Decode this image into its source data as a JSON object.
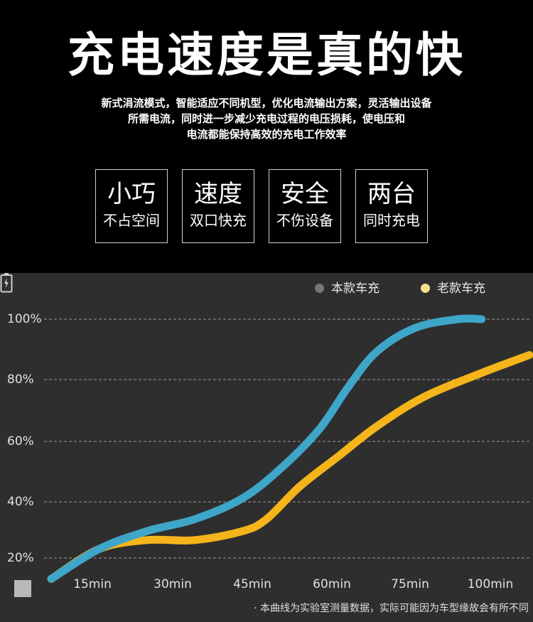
{
  "header": {
    "title": "充电速度是真的快",
    "description_lines": [
      "新式涓流模式，智能适应不同机型，优化电流输出方案，灵活输出设备",
      "所需电流，同时进一步减少充电过程的电压损耗，使电压和",
      "电流都能保持高效的充电工作效率"
    ]
  },
  "features": [
    {
      "title": "小巧",
      "subtitle": "不占空间"
    },
    {
      "title": "速度",
      "subtitle": "双口快充"
    },
    {
      "title": "安全",
      "subtitle": "不伤设备"
    },
    {
      "title": "两台",
      "subtitle": "同时充电"
    }
  ],
  "chart_data": {
    "type": "line",
    "title": "",
    "xlabel": "",
    "ylabel": "",
    "x_ticks": [
      "15min",
      "30min",
      "45min",
      "60min",
      "75min",
      "100min"
    ],
    "y_ticks": [
      "100%",
      "80%",
      "60%",
      "40%",
      "20%"
    ],
    "ylim": [
      10,
      100
    ],
    "xlim": [
      0,
      100
    ],
    "grid": true,
    "legend_position": "top-right",
    "series": [
      {
        "name": "本款车充",
        "color": "#3ea6c8",
        "points": [
          [
            0,
            13
          ],
          [
            10,
            23
          ],
          [
            20,
            29
          ],
          [
            30,
            33
          ],
          [
            40,
            40
          ],
          [
            48,
            50
          ],
          [
            56,
            63
          ],
          [
            62,
            77
          ],
          [
            68,
            89
          ],
          [
            76,
            97
          ],
          [
            85,
            100
          ],
          [
            90,
            100
          ]
        ]
      },
      {
        "name": "老款车充",
        "color": "#f5b51a",
        "points": [
          [
            0,
            13
          ],
          [
            10,
            23
          ],
          [
            20,
            26
          ],
          [
            30,
            26
          ],
          [
            40,
            29
          ],
          [
            45,
            33
          ],
          [
            52,
            44
          ],
          [
            60,
            54
          ],
          [
            68,
            64
          ],
          [
            78,
            74
          ],
          [
            90,
            82
          ],
          [
            100,
            88
          ]
        ]
      }
    ],
    "annotation": "· 本曲线为实验室测量数据，实际可能因为车型缘故会有所不同"
  },
  "legend_dots": [
    "#777777",
    "#f5e08a"
  ]
}
